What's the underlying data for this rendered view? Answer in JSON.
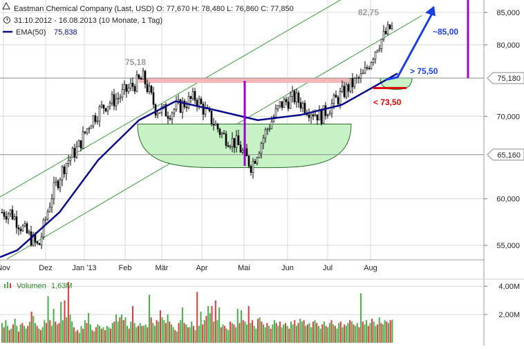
{
  "header": {
    "title_line": "Eastman Chemical Company (Last, USD)  O: 77,670  H: 78,480  L: 76,860  C: 77,850",
    "period_line": "31.10.2012 - 16.08.2013 (10 Monate, 1 Tag)",
    "ema_label": "EMA(50)",
    "ema_value": "75,838"
  },
  "colors": {
    "background": "#ffffff",
    "grid": "#d8d8d8",
    "candle_up": "#000000",
    "ema": "#0a0a8c",
    "channel": "#3a9a3a",
    "resistance_zone": "#f4b8b8",
    "bowl_fill": "#c6f2c6",
    "bowl_stroke": "#2c6a2c",
    "target_arrow": "#1a3ee6",
    "stop_level": "#e00000",
    "marker": "#a000d0",
    "volume_up": "#4ab04a",
    "volume_down": "#d84040"
  },
  "chart_data": [
    {
      "type": "candlestick",
      "title": "Eastman Chemical Company (Last, USD)",
      "x_ticks": [
        "Nov",
        "Dez",
        "Jan '13",
        "Feb",
        "Mär",
        "Apr",
        "Mai",
        "Jun",
        "Jul",
        "Aug"
      ],
      "y_ticks": [
        "55,000",
        "60,000",
        "70,000",
        "80,000",
        "85,000"
      ],
      "ylim": [
        53,
        88
      ],
      "y_scale": "log",
      "grid": true,
      "series": [
        {
          "name": "Kurs",
          "points": [
            [
              "Nov",
              58.5
            ],
            [
              "Nov",
              56.5
            ],
            [
              "Nov",
              54.8
            ],
            [
              "Dez",
              60.5
            ],
            [
              "Dez",
              64.0
            ],
            [
              "Dez",
              66.0
            ],
            [
              "Jan '13",
              69.5
            ],
            [
              "Jan '13",
              71.5
            ],
            [
              "Jan '13",
              72.5
            ],
            [
              "Feb",
              74.0
            ],
            [
              "Feb",
              75.18
            ],
            [
              "Feb",
              71.0
            ],
            [
              "Mär",
              70.5
            ],
            [
              "Mär",
              71.5
            ],
            [
              "Mär",
              72.5
            ],
            [
              "Apr",
              70.0
            ],
            [
              "Apr",
              67.5
            ],
            [
              "Apr",
              66.5
            ],
            [
              "Mai",
              63.8
            ],
            [
              "Mai",
              68.0
            ],
            [
              "Mai",
              71.5
            ],
            [
              "Jun",
              72.5
            ],
            [
              "Jun",
              71.0
            ],
            [
              "Jun",
              70.0
            ],
            [
              "Jul",
              72.0
            ],
            [
              "Jul",
              74.0
            ],
            [
              "Jul",
              75.5
            ],
            [
              "Aug",
              80.0
            ],
            [
              "Aug",
              82.75
            ],
            [
              "Aug",
              77.85
            ]
          ]
        },
        {
          "name": "EMA(50)",
          "points": [
            [
              "Nov",
              54.5
            ],
            [
              "Dez",
              58.5
            ],
            [
              "Jan '13",
              64.5
            ],
            [
              "Feb",
              69.5
            ],
            [
              "Mär",
              72.0
            ],
            [
              "Apr",
              70.8
            ],
            [
              "Mai",
              69.5
            ],
            [
              "Jun",
              70.2
            ],
            [
              "Jul",
              71.5
            ],
            [
              "Aug",
              75.838
            ]
          ]
        }
      ],
      "levels": [
        {
          "label": "75,180",
          "value": 75.18
        },
        {
          "label": "65,160",
          "value": 65.16
        }
      ],
      "annotations": [
        "82,75",
        "75,18",
        "~85,00",
        "> 75,50",
        "< 73,50"
      ]
    },
    {
      "type": "bar",
      "title": "Volumen",
      "series": [
        {
          "name": "Volumen",
          "latest": "1,63M"
        }
      ],
      "y_ticks": [
        "2,00M",
        "4,00M"
      ],
      "ylim": [
        0,
        4.5
      ],
      "unit": "M",
      "values": [
        1.4,
        1.1,
        1.6,
        1.2,
        0.9,
        1.0,
        1.3,
        1.7,
        1.2,
        0.8,
        1.3,
        1.4,
        1.2,
        1.0,
        1.2,
        1.5,
        2.2,
        1.9,
        1.4,
        1.2,
        1.0,
        0.9,
        1.1,
        1.6,
        1.4,
        3.3,
        1.6,
        1.2,
        2.4,
        1.5,
        1.3,
        1.4,
        2.9,
        1.6,
        3.0,
        1.8,
        4.3,
        2.0,
        1.5,
        1.1,
        0.8,
        0.9,
        0.7,
        1.2,
        1.0,
        1.6,
        1.4,
        2.1,
        1.3,
        0.9,
        0.8,
        1.1,
        1.3,
        1.2,
        1.0,
        1.1,
        0.9,
        1.2,
        1.1,
        1.0,
        1.4,
        1.5,
        2.0,
        1.5,
        1.8,
        2.0,
        1.6,
        1.8,
        1.2,
        1.0,
        1.5,
        2.6,
        1.4,
        1.1,
        1.2,
        1.4,
        1.2,
        1.2,
        1.3,
        1.1,
        3.4,
        1.8,
        1.4,
        1.2,
        1.6,
        1.5,
        2.3,
        1.8,
        1.6,
        1.4,
        2.0,
        1.5,
        1.3,
        1.1,
        0.9,
        0.8,
        1.4,
        1.6,
        2.5,
        1.4,
        1.3,
        1.1,
        1.1,
        1.5,
        1.2,
        0.9,
        3.6,
        1.2,
        2.2,
        1.3,
        1.6,
        1.9,
        2.6,
        2.1,
        2.6,
        1.5,
        3.0,
        1.6,
        2.5,
        1.1,
        1.3,
        1.2,
        1.0,
        0.9,
        1.5,
        1.4,
        1.3,
        1.1,
        2.4,
        1.4,
        2.3,
        1.6,
        1.5,
        1.3,
        2.6,
        1.4,
        1.6,
        1.2,
        1.0,
        1.7,
        1.8,
        1.5,
        1.3,
        1.1,
        1.4,
        1.2,
        1.0,
        1.3,
        1.6,
        1.4,
        1.2,
        1.5,
        1.1,
        1.3,
        1.4,
        1.2,
        1.0,
        1.5,
        1.3,
        1.6,
        1.2,
        1.4,
        1.7,
        1.5,
        1.6,
        1.2,
        1.3,
        1.4,
        1.1,
        1.5,
        1.6,
        1.4,
        1.2,
        1.0,
        1.3,
        1.5,
        1.2,
        1.1,
        1.4,
        1.6,
        1.3,
        1.2,
        1.0,
        1.4,
        1.5,
        1.1,
        1.3,
        1.2,
        1.4,
        1.6,
        1.5,
        1.3,
        1.2,
        1.4,
        1.1,
        3.5,
        1.5,
        1.3,
        1.6,
        1.2,
        1.4,
        1.7,
        1.5,
        1.2,
        1.3,
        1.8,
        1.4,
        1.3,
        1.6,
        1.5,
        1.4,
        1.6,
        1.63
      ]
    }
  ]
}
